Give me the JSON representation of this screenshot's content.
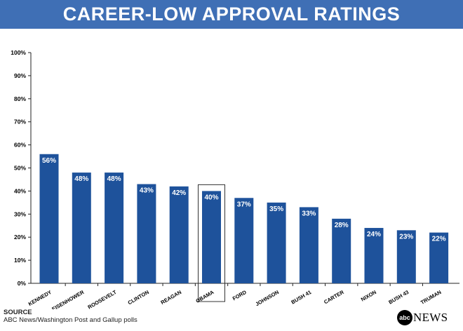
{
  "header": {
    "title": "CAREER-LOW APPROVAL RATINGS"
  },
  "colors": {
    "header_bg": "#3f6fb5",
    "bar": "#1e529b",
    "highlight_box": "#333333"
  },
  "chart_data": {
    "type": "bar",
    "title": "CAREER-LOW APPROVAL RATINGS",
    "categories": [
      "KENNEDY",
      "EISENHOWER",
      "ROOSEVELT",
      "CLINTON",
      "REAGAN",
      "OBAMA",
      "FORD",
      "JOHNSON",
      "BUSH 41",
      "CARTER",
      "NIXON",
      "BUSH 43",
      "TRUMAN"
    ],
    "values": [
      56,
      48,
      48,
      43,
      42,
      40,
      37,
      35,
      33,
      28,
      24,
      23,
      22
    ],
    "data_labels": [
      "56%",
      "48%",
      "48%",
      "43%",
      "42%",
      "40%",
      "37%",
      "35%",
      "33%",
      "28%",
      "24%",
      "23%",
      "22%"
    ],
    "highlight": "OBAMA",
    "yticks": [
      "0%",
      "10%",
      "20%",
      "30%",
      "40%",
      "50%",
      "60%",
      "70%",
      "80%",
      "90%",
      "100%"
    ],
    "ylim": [
      0,
      100
    ],
    "xlabel": "",
    "ylabel": "",
    "grid": false,
    "legend": "none"
  },
  "footer": {
    "source_heading": "SOURCE",
    "source_text": "ABC News/Washington Post and Gallup polls"
  },
  "logo": {
    "mark": "abc",
    "word": "NEWS"
  }
}
